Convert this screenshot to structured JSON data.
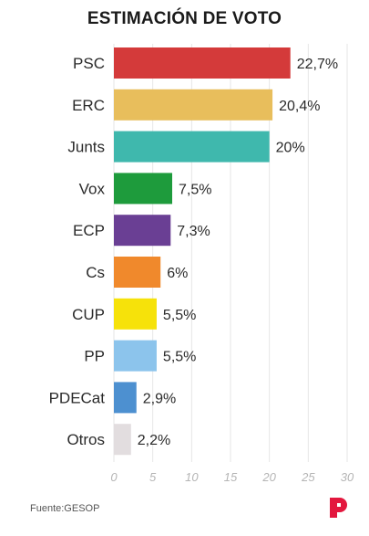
{
  "title": "ESTIMACIÓN DE VOTO",
  "source": "Fuente:GESOP",
  "logo_icon": "publico-p-logo-icon",
  "chart_data": {
    "type": "bar",
    "orientation": "horizontal",
    "title": "ESTIMACIÓN DE VOTO",
    "xlabel": "",
    "ylabel": "",
    "xlim": [
      0,
      30
    ],
    "x_ticks": [
      0,
      5,
      10,
      15,
      20,
      25,
      30
    ],
    "grid": true,
    "categories": [
      "PSC",
      "ERC",
      "Junts",
      "Vox",
      "ECP",
      "Cs",
      "CUP",
      "PP",
      "PDECat",
      "Otros"
    ],
    "values": [
      22.7,
      20.4,
      20,
      7.5,
      7.3,
      6,
      5.5,
      5.5,
      2.9,
      2.2
    ],
    "value_labels": [
      "22,7%",
      "20,4%",
      "20%",
      "7,5%",
      "7,3%",
      "6%",
      "5,5%",
      "5,5%",
      "2,9%",
      "2,2%"
    ],
    "colors": [
      "#d43a3a",
      "#e8be5c",
      "#3fb8ad",
      "#1e9b3c",
      "#6a3f94",
      "#f0892c",
      "#f6e20a",
      "#8cc4ec",
      "#4d90d0",
      "#e2dddf"
    ]
  }
}
